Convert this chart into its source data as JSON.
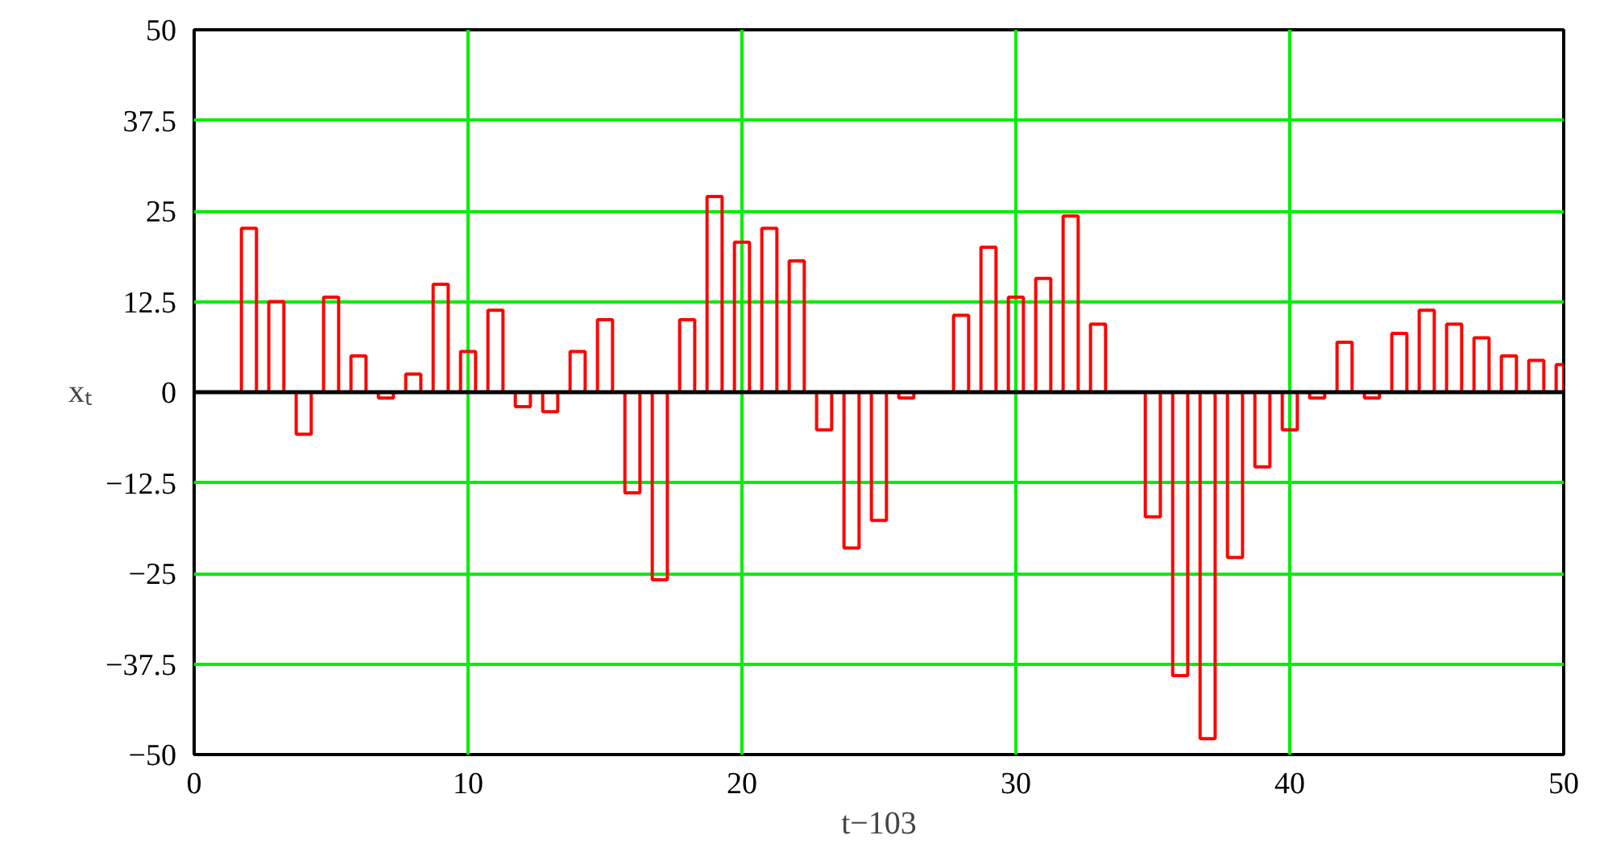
{
  "chart_data": {
    "type": "bar",
    "xlabel": "t−103",
    "ylabel": "xₜ",
    "x": [
      1,
      2,
      3,
      4,
      5,
      6,
      7,
      8,
      9,
      10,
      11,
      12,
      13,
      14,
      15,
      16,
      17,
      18,
      19,
      20,
      21,
      22,
      23,
      24,
      25,
      26,
      27,
      28,
      29,
      30,
      31,
      32,
      33,
      34,
      35,
      36,
      37,
      38,
      39,
      40,
      41,
      42,
      43,
      44,
      45,
      46,
      47,
      48,
      49,
      50
    ],
    "series": [
      {
        "color": "#ff0000",
        "values": [
          0,
          22.6,
          12.5,
          -5.8,
          13.1,
          5.0,
          -0.8,
          2.5,
          14.9,
          5.6,
          11.3,
          -2.0,
          -2.7,
          5.6,
          10.0,
          -13.9,
          -25.9,
          10.0,
          27.0,
          20.7,
          22.6,
          18.1,
          -5.2,
          -21.5,
          -17.7,
          -0.8,
          0,
          10.6,
          20.0,
          13.1,
          15.7,
          24.3,
          9.4,
          0,
          -17.2,
          -39.1,
          -47.8,
          -22.8,
          -10.3,
          -5.2,
          -0.8,
          6.9,
          -0.8,
          8.1,
          11.3,
          9.4,
          7.5,
          5.0,
          4.4,
          3.8
        ]
      }
    ],
    "xlim": [
      0,
      50
    ],
    "xticks": [
      0,
      10,
      20,
      30,
      40,
      50
    ],
    "ylim": [
      -50,
      50
    ],
    "yticks": [
      {
        "value": -50,
        "label": "−50"
      },
      {
        "value": -37.5,
        "label": "−37.5"
      },
      {
        "value": -25,
        "label": "−25"
      },
      {
        "value": -12.5,
        "label": "−12.5"
      },
      0,
      12.5,
      25,
      37.5,
      50
    ],
    "grid": true,
    "ref_lines": [
      {
        "axis": "y",
        "value": 0,
        "color": "#000000"
      }
    ]
  }
}
